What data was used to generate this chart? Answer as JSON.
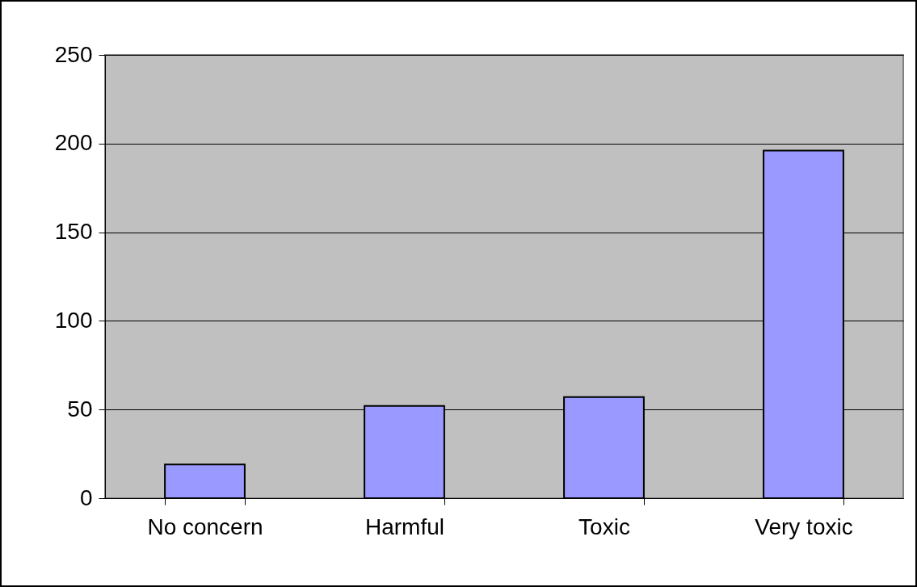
{
  "chart_data": {
    "type": "bar",
    "categories": [
      "No concern",
      "Harmful",
      "Toxic",
      "Very toxic"
    ],
    "values": [
      19,
      52,
      57,
      196
    ],
    "color": "#9999ff",
    "ylim": [
      0,
      250
    ],
    "yticks": [
      0,
      50,
      100,
      150,
      200,
      250
    ],
    "grid": "y"
  }
}
